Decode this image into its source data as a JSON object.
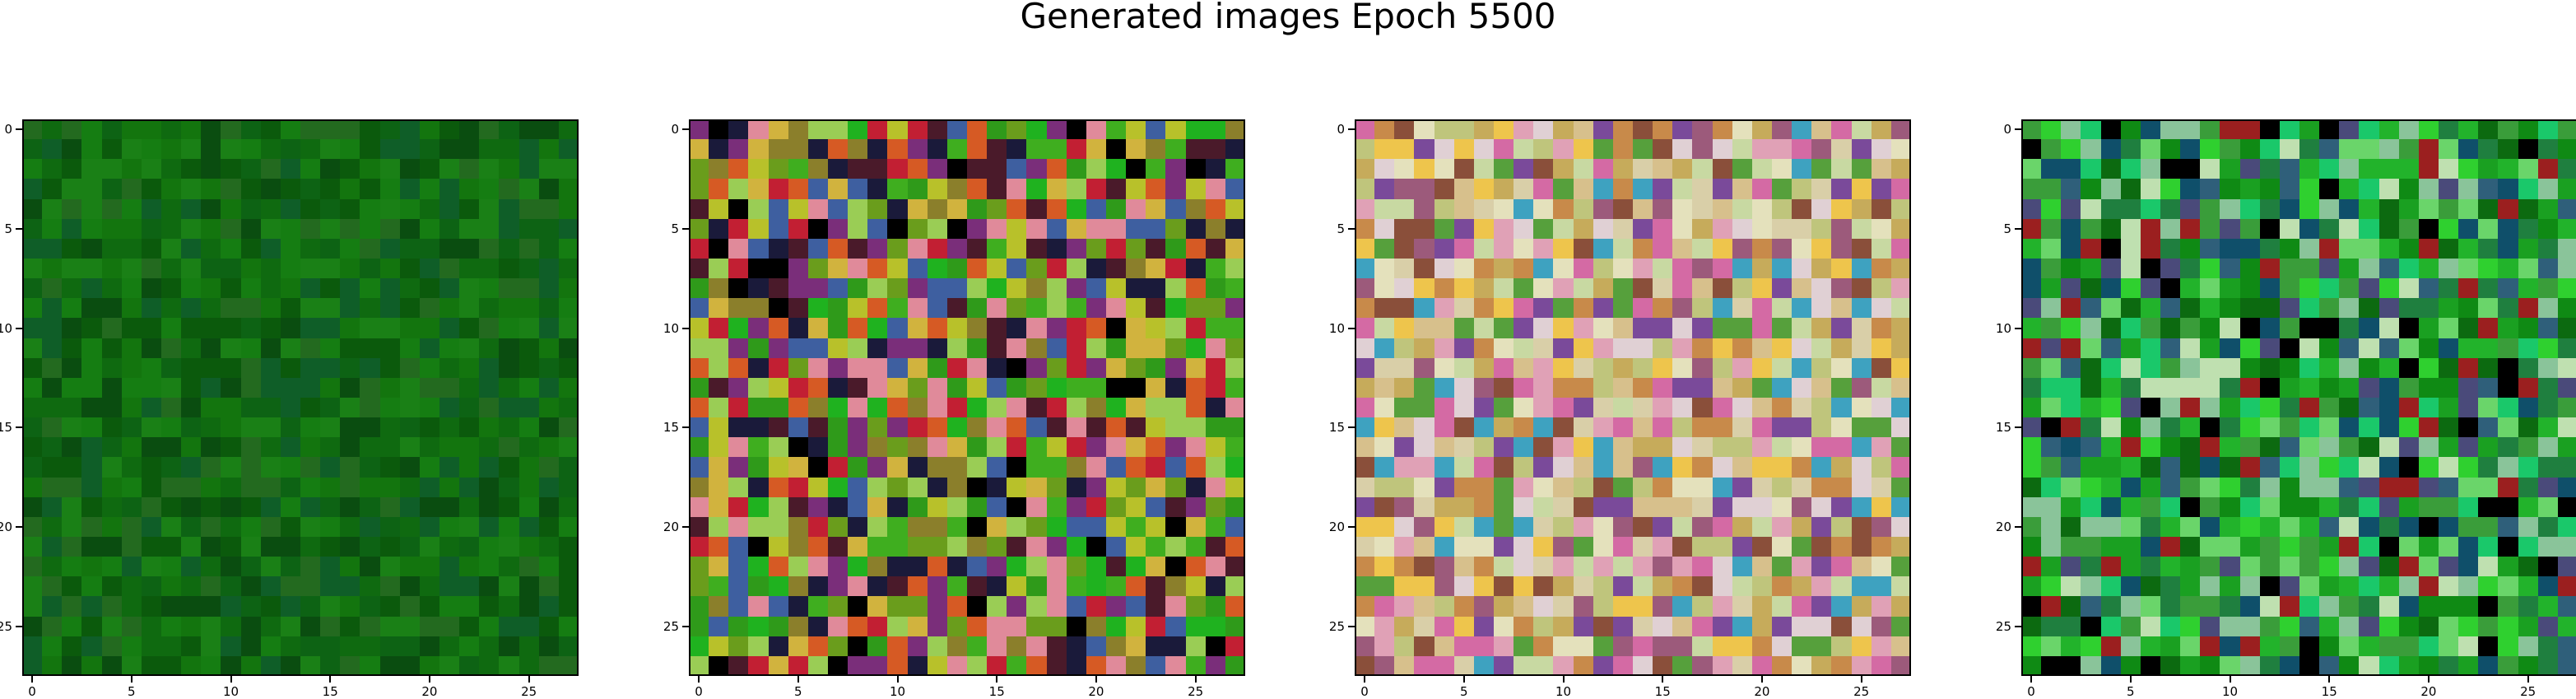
{
  "figure": {
    "title": "Generated images Epoch 5500"
  },
  "axes": {
    "ticks": [
      0,
      5,
      10,
      15,
      20,
      25
    ],
    "tick_labels": [
      "0",
      "5",
      "10",
      "15",
      "20",
      "25"
    ],
    "extent": [
      -0.5,
      27.5
    ]
  },
  "panels": [
    {
      "palette": [
        "#0b5a0c",
        "#0f6a10",
        "#13750e",
        "#157d12",
        "#0a4d10",
        "#1a8016",
        "#236a1f",
        "#0d6314",
        "#0f5e28"
      ]
    },
    {
      "palette": [
        "#2f9a1a",
        "#6a9d1c",
        "#3fae1f",
        "#8b7f2b",
        "#4a1a2a",
        "#1a1a3a",
        "#c21f33",
        "#d1b33e",
        "#e08a9a",
        "#7a2e7a",
        "#1fb21f",
        "#b8c12a",
        "#000000",
        "#d65a24",
        "#3e5fa0",
        "#9acd55"
      ]
    },
    {
      "palette": [
        "#d7c08c",
        "#e0a1b6",
        "#bfc57c",
        "#d9cfa8",
        "#9c5a7b",
        "#e0d0d4",
        "#c88a4a",
        "#d46aa4",
        "#7a4a9a",
        "#56a03c",
        "#e4e1bc",
        "#c6ab5b",
        "#eec54c",
        "#c8d9a2",
        "#3ea2c0",
        "#8a4f3a"
      ]
    },
    {
      "palette": [
        "#0f8a14",
        "#1aa021",
        "#22b32b",
        "#0c6a10",
        "#3a9d3a",
        "#1f7f3f",
        "#6ad56a",
        "#0f4f6a",
        "#8ac49a",
        "#2f5f7a",
        "#bfe0b0",
        "#9b1f1f",
        "#000000",
        "#1ac86a",
        "#4a4a7a",
        "#2fd02f"
      ]
    }
  ]
}
